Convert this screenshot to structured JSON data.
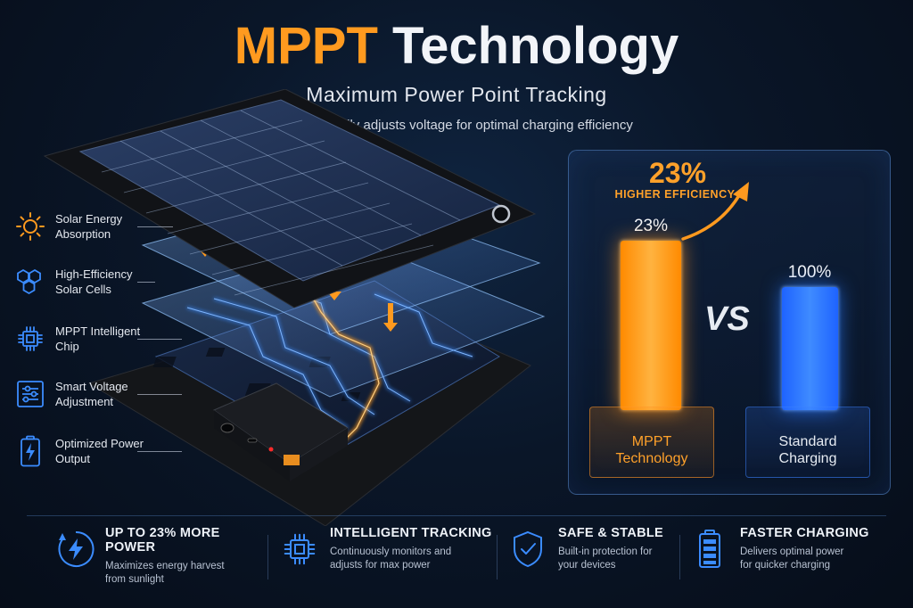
{
  "header": {
    "title_accent": "MPPT",
    "title_rest": "Technology",
    "subtitle": "Maximum Power Point Tracking",
    "tagline": "Automatically adjusts voltage for optimal charging efficiency"
  },
  "layers": [
    {
      "icon": "sun-icon",
      "label": "Solar Energy Absorption"
    },
    {
      "icon": "hexagon-cells-icon",
      "label": "High-Efficiency Solar Cells"
    },
    {
      "icon": "chip-icon",
      "label": "MPPT Intelligent Chip"
    },
    {
      "icon": "sliders-icon",
      "label": "Smart Voltage Adjustment"
    },
    {
      "icon": "battery-bolt-icon",
      "label": "Optimized Power Output"
    }
  ],
  "comparison": {
    "headline_value": "23%",
    "headline_label": "HIGHER EFFICIENCY",
    "vs_label": "VS",
    "mppt": {
      "value_label": "23%",
      "name": "MPPT Technology",
      "color": "#ff9a1f"
    },
    "standard": {
      "value_label": "100%",
      "name": "Standard Charging",
      "color": "#2f7bff"
    }
  },
  "benefits": [
    {
      "icon": "lightning-circle-icon",
      "title": "UP TO 23% MORE POWER",
      "desc": "Maximizes energy harvest from sunlight"
    },
    {
      "icon": "chip-icon",
      "title": "INTELLIGENT TRACKING",
      "desc": "Continuously monitors and adjusts for max power"
    },
    {
      "icon": "shield-check-icon",
      "title": "SAFE & STABLE",
      "desc": "Built-in protection for your devices"
    },
    {
      "icon": "battery-icon",
      "title": "FASTER CHARGING",
      "desc": "Delivers optimal power for quicker charging"
    }
  ],
  "colors": {
    "accent_orange": "#ff9a1f",
    "accent_blue": "#2f7bff",
    "background": "#0a1628"
  }
}
